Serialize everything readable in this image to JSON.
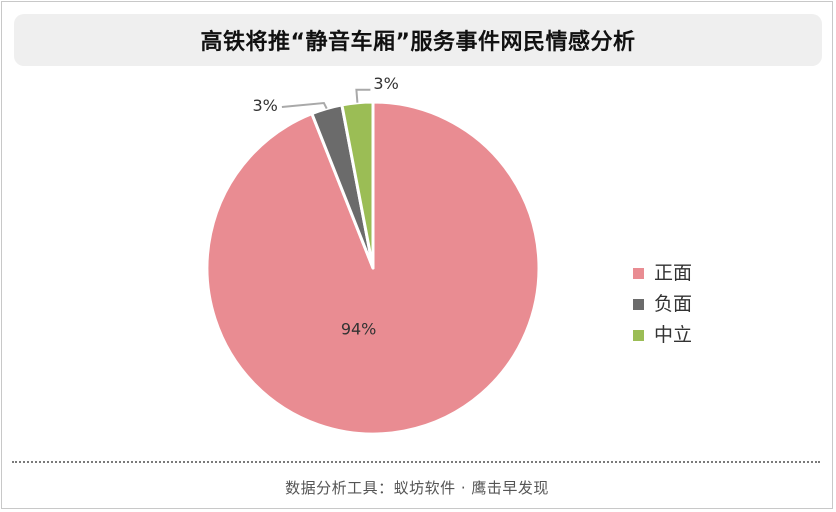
{
  "title": "高铁将推“静音车厢”服务事件网民情感分析",
  "footer": "数据分析工具：蚁坊软件 · 鹰击早发现",
  "chart_data": {
    "type": "pie",
    "categories": [
      "正面",
      "负面",
      "中立"
    ],
    "values": [
      94,
      3,
      3
    ],
    "data_labels": [
      "94%",
      "3%",
      "3%"
    ],
    "colors": [
      "#e98c92",
      "#6b6b6b",
      "#9bbd55"
    ],
    "start_angle_deg": 0,
    "direction": "clockwise",
    "legend_placement": "right"
  }
}
